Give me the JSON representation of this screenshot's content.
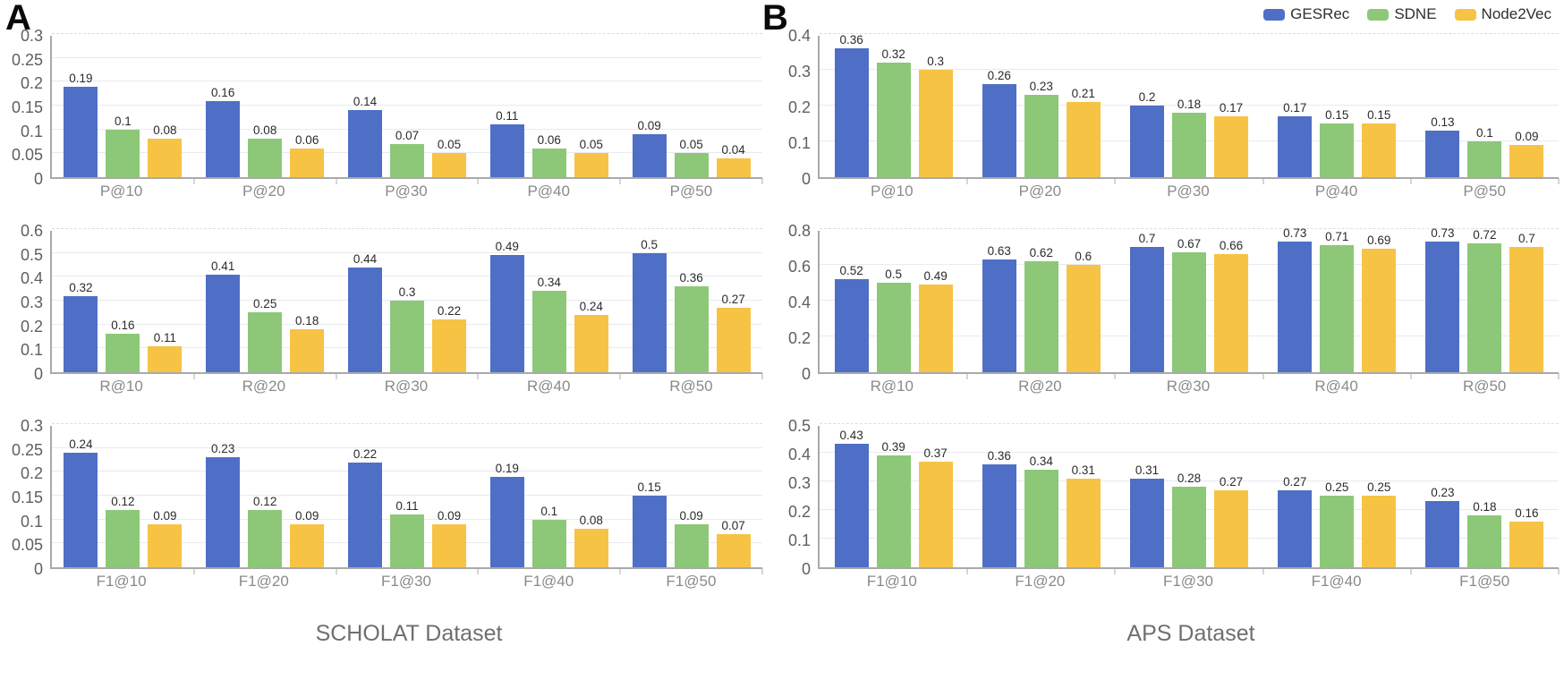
{
  "figure": {
    "panels": [
      {
        "letter": "A",
        "title": "SCHOLAT Dataset"
      },
      {
        "letter": "B",
        "title": "APS Dataset"
      }
    ]
  },
  "legend": {
    "position": "top-right",
    "items": [
      {
        "label": "GESRec",
        "color": "#4e6fc5"
      },
      {
        "label": "SDNE",
        "color": "#8dc878"
      },
      {
        "label": "Node2Vec",
        "color": "#f6c344"
      }
    ]
  },
  "colors": {
    "axis": "#a9a9a9",
    "gridline": "#e8eaf2",
    "tick_label": "#5f5f5f",
    "category_label": "#8a8a8a",
    "value_label": "#2b2b2b",
    "panel_title": "#6f6f6f"
  },
  "chart_data": [
    {
      "type": "bar",
      "panel": "A",
      "grid": true,
      "legend_position": "top-right",
      "categories": [
        "P@10",
        "P@20",
        "P@30",
        "P@40",
        "P@50"
      ],
      "ylim": [
        0,
        0.3
      ],
      "yticks": [
        "0",
        "0.05",
        "0.1",
        "0.15",
        "0.2",
        "0.25",
        "0.3"
      ],
      "series": [
        {
          "name": "GESRec",
          "values": [
            0.19,
            0.16,
            0.14,
            0.11,
            0.09
          ]
        },
        {
          "name": "SDNE",
          "values": [
            0.1,
            0.08,
            0.07,
            0.06,
            0.05
          ]
        },
        {
          "name": "Node2Vec",
          "values": [
            0.08,
            0.06,
            0.05,
            0.05,
            0.04
          ]
        }
      ]
    },
    {
      "type": "bar",
      "panel": "A",
      "grid": true,
      "legend_position": "top-right",
      "categories": [
        "R@10",
        "R@20",
        "R@30",
        "R@40",
        "R@50"
      ],
      "ylim": [
        0,
        0.6
      ],
      "yticks": [
        "0",
        "0.1",
        "0.2",
        "0.3",
        "0.4",
        "0.5",
        "0.6"
      ],
      "series": [
        {
          "name": "GESRec",
          "values": [
            0.32,
            0.41,
            0.44,
            0.49,
            0.5
          ]
        },
        {
          "name": "SDNE",
          "values": [
            0.16,
            0.25,
            0.3,
            0.34,
            0.36
          ]
        },
        {
          "name": "Node2Vec",
          "values": [
            0.11,
            0.18,
            0.22,
            0.24,
            0.27
          ]
        }
      ]
    },
    {
      "type": "bar",
      "panel": "A",
      "grid": true,
      "legend_position": "top-right",
      "categories": [
        "F1@10",
        "F1@20",
        "F1@30",
        "F1@40",
        "F1@50"
      ],
      "ylim": [
        0,
        0.3
      ],
      "yticks": [
        "0",
        "0.05",
        "0.1",
        "0.15",
        "0.2",
        "0.25",
        "0.3"
      ],
      "series": [
        {
          "name": "GESRec",
          "values": [
            0.24,
            0.23,
            0.22,
            0.19,
            0.15
          ]
        },
        {
          "name": "SDNE",
          "values": [
            0.12,
            0.12,
            0.11,
            0.1,
            0.09
          ]
        },
        {
          "name": "Node2Vec",
          "values": [
            0.09,
            0.09,
            0.09,
            0.08,
            0.07
          ]
        }
      ]
    },
    {
      "type": "bar",
      "panel": "B",
      "grid": true,
      "legend_position": "top-right",
      "categories": [
        "P@10",
        "P@20",
        "P@30",
        "P@40",
        "P@50"
      ],
      "ylim": [
        0,
        0.4
      ],
      "yticks": [
        "0",
        "0.1",
        "0.2",
        "0.3",
        "0.4"
      ],
      "series": [
        {
          "name": "GESRec",
          "values": [
            0.36,
            0.26,
            0.2,
            0.17,
            0.13
          ]
        },
        {
          "name": "SDNE",
          "values": [
            0.32,
            0.23,
            0.18,
            0.15,
            0.1
          ]
        },
        {
          "name": "Node2Vec",
          "values": [
            0.3,
            0.21,
            0.17,
            0.15,
            0.09
          ]
        }
      ]
    },
    {
      "type": "bar",
      "panel": "B",
      "grid": true,
      "legend_position": "top-right",
      "categories": [
        "R@10",
        "R@20",
        "R@30",
        "R@40",
        "R@50"
      ],
      "ylim": [
        0,
        0.8
      ],
      "yticks": [
        "0",
        "0.2",
        "0.4",
        "0.6",
        "0.8"
      ],
      "series": [
        {
          "name": "GESRec",
          "values": [
            0.52,
            0.63,
            0.7,
            0.73,
            0.73
          ]
        },
        {
          "name": "SDNE",
          "values": [
            0.5,
            0.62,
            0.67,
            0.71,
            0.72
          ]
        },
        {
          "name": "Node2Vec",
          "values": [
            0.49,
            0.6,
            0.66,
            0.69,
            0.7
          ]
        }
      ]
    },
    {
      "type": "bar",
      "panel": "B",
      "grid": true,
      "legend_position": "top-right",
      "categories": [
        "F1@10",
        "F1@20",
        "F1@30",
        "F1@40",
        "F1@50"
      ],
      "ylim": [
        0,
        0.5
      ],
      "yticks": [
        "0",
        "0.1",
        "0.2",
        "0.3",
        "0.4",
        "0.5"
      ],
      "series": [
        {
          "name": "GESRec",
          "values": [
            0.43,
            0.36,
            0.31,
            0.27,
            0.23
          ]
        },
        {
          "name": "SDNE",
          "values": [
            0.39,
            0.34,
            0.28,
            0.25,
            0.18
          ]
        },
        {
          "name": "Node2Vec",
          "values": [
            0.37,
            0.31,
            0.27,
            0.25,
            0.16
          ]
        }
      ]
    }
  ]
}
